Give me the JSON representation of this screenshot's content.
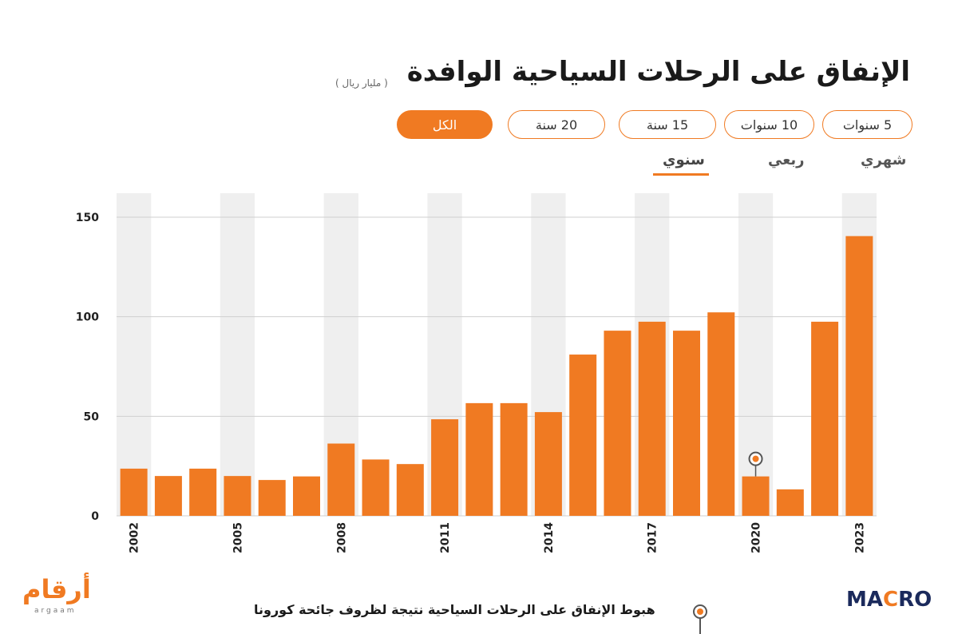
{
  "header": {
    "title": "الإنفاق على الرحلات السياحية الوافدة",
    "unit": "( مليار ريال )"
  },
  "ranges": [
    {
      "label": "5 سنوات",
      "active": false
    },
    {
      "label": "10 سنوات",
      "active": false
    },
    {
      "label": "15 سنة",
      "active": false
    },
    {
      "label": "20 سنة",
      "active": false
    },
    {
      "label": "الكل",
      "active": true
    }
  ],
  "frequencies": [
    {
      "label": "شهري",
      "active": false
    },
    {
      "label": "ربعي",
      "active": false
    },
    {
      "label": "سنوي",
      "active": true
    }
  ],
  "legend": {
    "annotation_text": "هبوط الإنفاق على الرحلات السياحية نتيجة لظروف جائحة كورونا"
  },
  "branding": {
    "logo_left": "أرقام",
    "logo_left_sub": "argaam",
    "logo_right_prefix": "MA",
    "logo_right_x": "C",
    "logo_right_suffix": "RO"
  },
  "colors": {
    "bar": "#f07a22",
    "band": "#efefef",
    "grid": "#cfcfcf",
    "axis_text": "#222222"
  },
  "chart_data": {
    "type": "bar",
    "title": "الإنفاق على الرحلات السياحية الوافدة",
    "ylabel": "( مليار ريال )",
    "ylim": [
      0,
      160
    ],
    "yticks": [
      0,
      50,
      100,
      150
    ],
    "x": [
      2002,
      2003,
      2004,
      2005,
      2006,
      2007,
      2008,
      2009,
      2010,
      2011,
      2012,
      2013,
      2014,
      2015,
      2016,
      2017,
      2018,
      2019,
      2020,
      2021,
      2022,
      2023
    ],
    "xtick_labels": [
      "2002",
      "2005",
      "2008",
      "2011",
      "2014",
      "2017",
      "2020",
      "2023"
    ],
    "values": [
      23.7,
      20.0,
      23.7,
      20.0,
      18.0,
      19.8,
      36.3,
      28.3,
      26.0,
      48.5,
      56.6,
      56.6,
      52.1,
      81.0,
      93.0,
      97.5,
      93.0,
      102.2,
      19.8,
      13.3,
      97.5,
      140.5
    ],
    "annotations": [
      {
        "x": 2020,
        "marker": "circle",
        "text_ref": "legend.annotation_text"
      }
    ],
    "grid": true
  }
}
